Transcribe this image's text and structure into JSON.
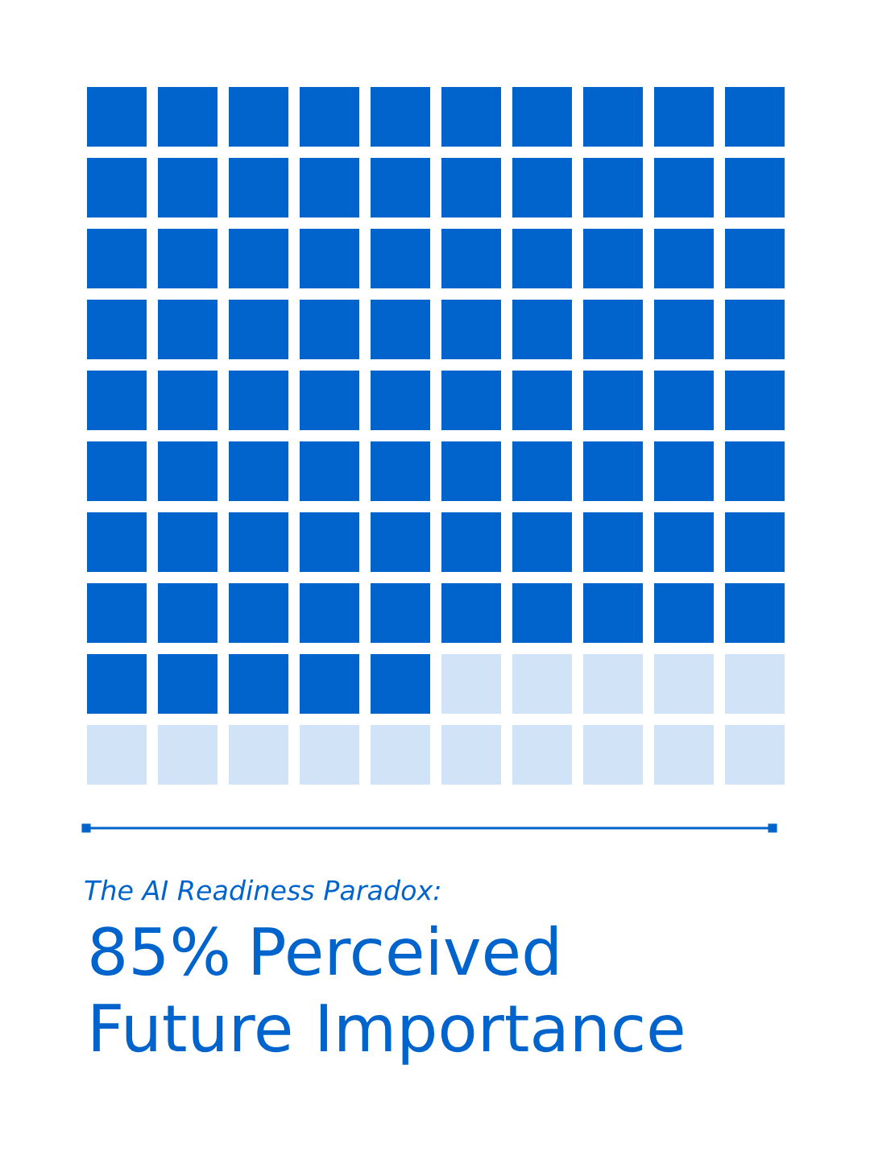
{
  "chart_data": {
    "type": "other",
    "subtitle": "The AI Readiness Paradox:",
    "title": "Perceived\nFuture Importance",
    "values": [
      85
    ],
    "value_labels": [
      "85%"
    ],
    "color": "#0064cc"
  }
}
